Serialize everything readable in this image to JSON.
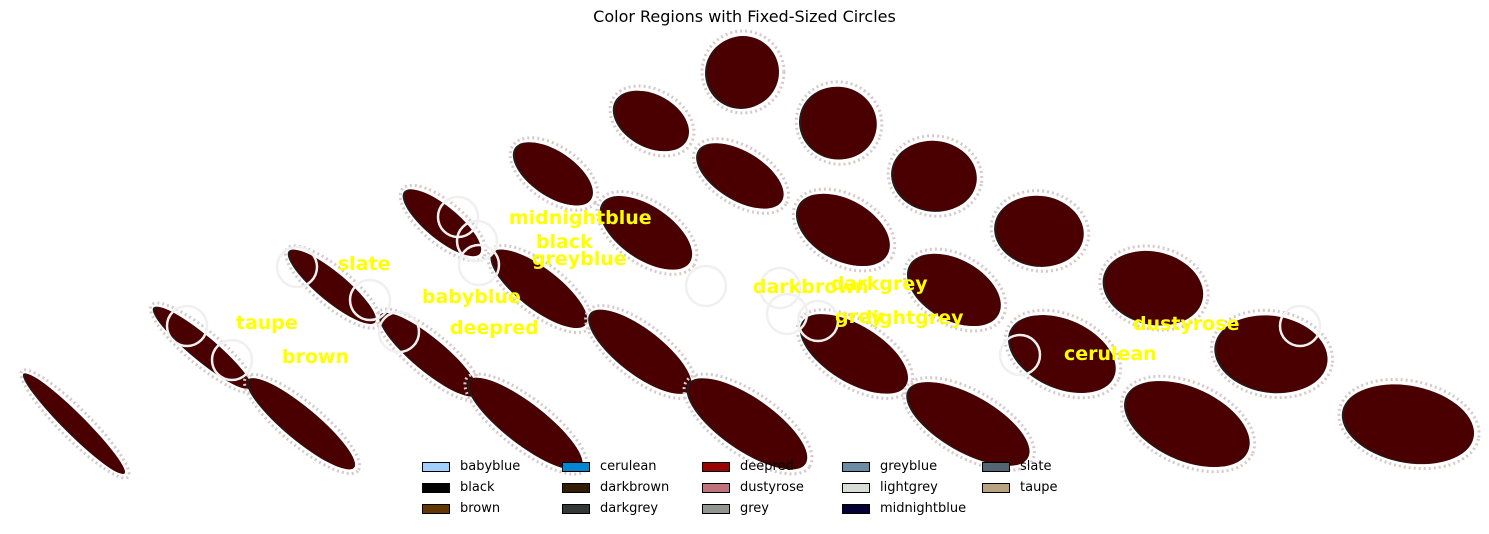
{
  "title": "Color Regions with Fixed-Sized Circles",
  "labels": [
    {
      "text": "midnightblue",
      "color": "#ffff00"
    },
    {
      "text": "black",
      "color": "#ffff00"
    },
    {
      "text": "greyblue",
      "color": "#ffff00"
    },
    {
      "text": "slate",
      "color": "#ffff00"
    },
    {
      "text": "babyblue",
      "color": "#ffff00"
    },
    {
      "text": "taupe",
      "color": "#ffff00"
    },
    {
      "text": "deepred",
      "color": "#ffff00"
    },
    {
      "text": "brown",
      "color": "#ffff00"
    },
    {
      "text": "darkbrown",
      "color": "#ffff00"
    },
    {
      "text": "darkgrey",
      "color": "#ffff00"
    },
    {
      "text": "grey",
      "color": "#ffff00"
    },
    {
      "text": "lightgrey",
      "color": "#ffff00"
    },
    {
      "text": "dustyrose",
      "color": "#ffff00"
    },
    {
      "text": "cerulean",
      "color": "#ffff00"
    }
  ],
  "legend": [
    {
      "name": "babyblue",
      "color": "#a2cffe"
    },
    {
      "name": "black",
      "color": "#000000"
    },
    {
      "name": "brown",
      "color": "#653700"
    },
    {
      "name": "cerulean",
      "color": "#0485d1"
    },
    {
      "name": "darkbrown",
      "color": "#341c02"
    },
    {
      "name": "darkgrey",
      "color": "#363737"
    },
    {
      "name": "deepred",
      "color": "#9a0200"
    },
    {
      "name": "dustyrose",
      "color": "#c0737a"
    },
    {
      "name": "grey",
      "color": "#929591"
    },
    {
      "name": "greyblue",
      "color": "#6b8ba4"
    },
    {
      "name": "lightgrey",
      "color": "#d8dcd6"
    },
    {
      "name": "midnightblue",
      "color": "#020035"
    },
    {
      "name": "slate",
      "color": "#516572"
    },
    {
      "name": "taupe",
      "color": "#b9a281"
    }
  ],
  "colors": {
    "blob": "#4a0000",
    "blob_edge": "#1e1e1e",
    "circle": "#f0f0f0"
  }
}
